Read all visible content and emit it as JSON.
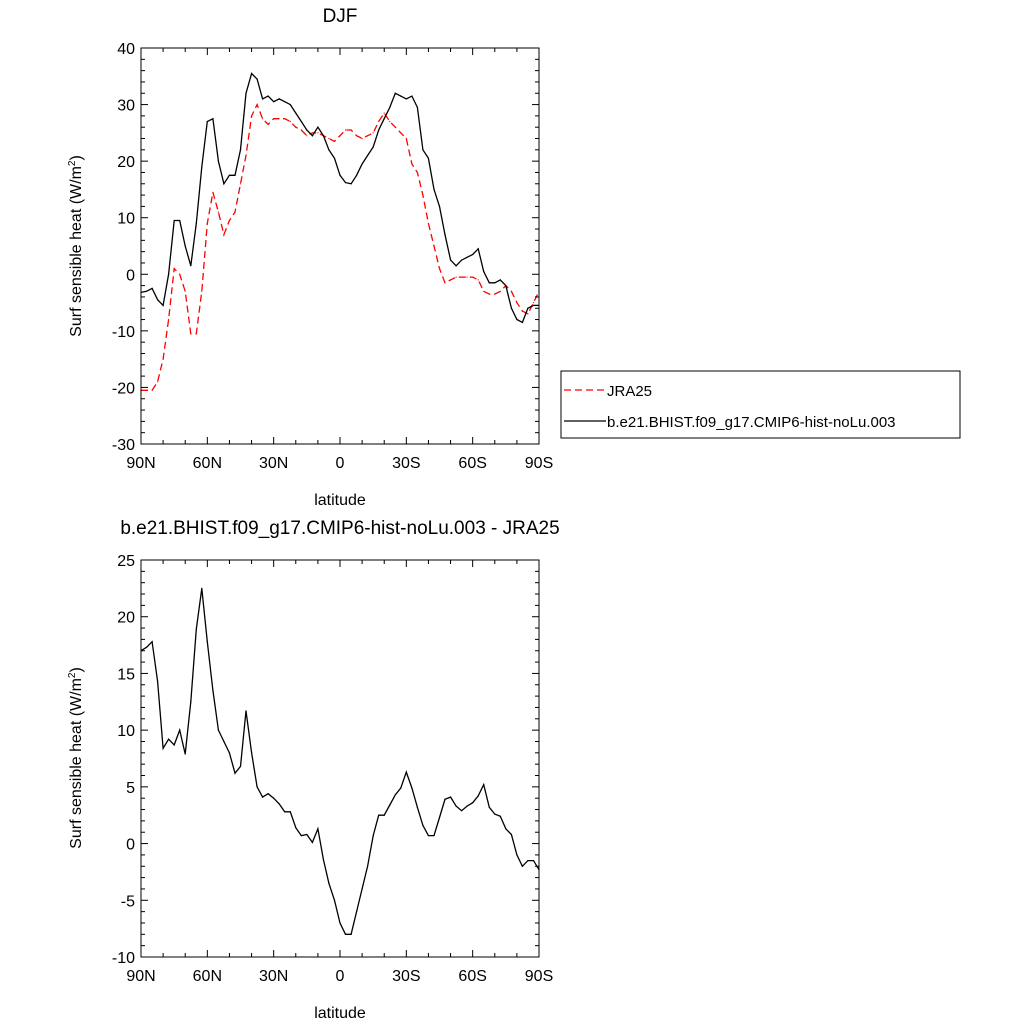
{
  "chart_data": [
    {
      "type": "line",
      "title": "DJF",
      "xlabel": "latitude",
      "ylabel": "Surf sensible heat (W/m",
      "ylabel_sup": "2",
      "ylabel_close": ")",
      "x_ticks": [
        "90N",
        "60N",
        "30N",
        "0",
        "30S",
        "60S",
        "90S"
      ],
      "y_ticks": [
        "40",
        "30",
        "20",
        "10",
        "0",
        "-10",
        "-20",
        "-30"
      ],
      "xlim": [
        90,
        -90
      ],
      "ylim": [
        -30,
        40
      ],
      "legend_placement": "right",
      "series": [
        {
          "name": "JRA25",
          "color": "#ff0000",
          "dash": "dashed",
          "x": [
            90,
            87.5,
            85,
            82.5,
            80,
            77.5,
            75,
            72.5,
            70,
            67.5,
            65,
            62.5,
            60,
            57.5,
            55,
            52.5,
            50,
            47.5,
            45,
            42.5,
            40,
            37.5,
            35,
            32.5,
            30,
            27.5,
            25,
            22.5,
            20,
            17.5,
            15,
            12.5,
            10,
            7.5,
            5,
            2.5,
            0,
            -2.5,
            -5,
            -7.5,
            -10,
            -12.5,
            -15,
            -17.5,
            -20,
            -22.5,
            -25,
            -27.5,
            -30,
            -32.5,
            -35,
            -37.5,
            -40,
            -42.5,
            -45,
            -47.5,
            -50,
            -52.5,
            -55,
            -57.5,
            -60,
            -62.5,
            -65,
            -67.5,
            -70,
            -72.5,
            -75,
            -77.5,
            -80,
            -82.5,
            -85,
            -87.5,
            -90
          ],
          "values": [
            -20.5,
            -20.5,
            -20.5,
            -19,
            -15,
            -8,
            1,
            0,
            -3,
            -10.5,
            -10.5,
            -3,
            9,
            14.5,
            11,
            7,
            9.5,
            11,
            16,
            21,
            28,
            30,
            27.5,
            26.5,
            27.5,
            27.5,
            27.5,
            27,
            26,
            25.5,
            24.5,
            25,
            25,
            24.5,
            24,
            23.5,
            24.5,
            25.5,
            25.5,
            24.5,
            24,
            24.5,
            25,
            27,
            28.5,
            27,
            26,
            25,
            24,
            19.5,
            18,
            14,
            9,
            5,
            1,
            -1.5,
            -1,
            -0.5,
            -0.5,
            -0.5,
            -0.5,
            -1,
            -3,
            -3.5,
            -3.5,
            -3,
            -2,
            -3,
            -5,
            -6.5,
            -7,
            -5,
            -3
          ]
        },
        {
          "name": "b.e21.BHIST.f09_g17.CMIP6-hist-noLu.003",
          "color": "#000000",
          "dash": "solid",
          "x": [
            90,
            87.5,
            85,
            82.5,
            80,
            77.5,
            75,
            72.5,
            70,
            67.5,
            65,
            62.5,
            60,
            57.5,
            55,
            52.5,
            50,
            47.5,
            45,
            42.5,
            40,
            37.5,
            35,
            32.5,
            30,
            27.5,
            25,
            22.5,
            20,
            17.5,
            15,
            12.5,
            10,
            7.5,
            5,
            2.5,
            0,
            -2.5,
            -5,
            -7.5,
            -10,
            -12.5,
            -15,
            -17.5,
            -20,
            -22.5,
            -25,
            -27.5,
            -30,
            -32.5,
            -35,
            -37.5,
            -40,
            -42.5,
            -45,
            -47.5,
            -50,
            -52.5,
            -55,
            -57.5,
            -60,
            -62.5,
            -65,
            -67.5,
            -70,
            -72.5,
            -75,
            -77.5,
            -80,
            -82.5,
            -85,
            -87.5,
            -90
          ],
          "values": [
            -3.2,
            -3,
            -2.5,
            -4.5,
            -5.5,
            0,
            9.5,
            9.5,
            5,
            1.5,
            9,
            19,
            27,
            27.5,
            20,
            16,
            17.5,
            17.5,
            22,
            32,
            35.5,
            34.5,
            31,
            31.5,
            30.5,
            31,
            30.5,
            30,
            28.5,
            27,
            25.5,
            24.5,
            26,
            24.5,
            22,
            20.5,
            17.5,
            16.2,
            16,
            17.5,
            19.5,
            21,
            22.5,
            25.5,
            27.5,
            29.5,
            32,
            31.5,
            31,
            31.5,
            29.5,
            22,
            20.5,
            15,
            12,
            7,
            2.5,
            1.5,
            2.5,
            3,
            3.5,
            4.5,
            0.5,
            -1.5,
            -1.5,
            -1,
            -2,
            -6,
            -8,
            -8.5,
            -6,
            -5.5,
            -5.5
          ]
        }
      ]
    },
    {
      "type": "line",
      "title": "b.e21.BHIST.f09_g17.CMIP6-hist-noLu.003 - JRA25",
      "xlabel": "latitude",
      "ylabel": "Surf sensible heat (W/m",
      "ylabel_sup": "2",
      "ylabel_close": ")",
      "x_ticks": [
        "90N",
        "60N",
        "30N",
        "0",
        "30S",
        "60S",
        "90S"
      ],
      "y_ticks": [
        "25",
        "20",
        "15",
        "10",
        "5",
        "0",
        "-5",
        "-10"
      ],
      "xlim": [
        90,
        -90
      ],
      "ylim": [
        -10,
        25
      ],
      "series": [
        {
          "color": "#000000",
          "dash": "solid",
          "x": [
            90,
            87.5,
            85,
            82.5,
            80,
            77.5,
            75,
            72.5,
            70,
            67.5,
            65,
            62.5,
            60,
            57.5,
            55,
            52.5,
            50,
            47.5,
            45,
            42.5,
            40,
            37.5,
            35,
            32.5,
            30,
            27.5,
            25,
            22.5,
            20,
            17.5,
            15,
            12.5,
            10,
            7.5,
            5,
            2.5,
            0,
            -2.5,
            -5,
            -7.5,
            -10,
            -12.5,
            -15,
            -17.5,
            -20,
            -22.5,
            -25,
            -27.5,
            -30,
            -32.5,
            -35,
            -37.5,
            -40,
            -42.5,
            -45,
            -47.5,
            -50,
            -52.5,
            -55,
            -57.5,
            -60,
            -62.5,
            -65,
            -67.5,
            -70,
            -72.5,
            -75,
            -77.5,
            -80,
            -82.5,
            -85,
            -87.5,
            -90
          ],
          "values": [
            17,
            17.3,
            17.8,
            14.3,
            8.4,
            9.2,
            8.7,
            10,
            7.9,
            12.5,
            18.9,
            22.5,
            17.8,
            13.5,
            10,
            9,
            8,
            6.2,
            6.8,
            11.7,
            8,
            5,
            4.1,
            4.4,
            4,
            3.5,
            2.8,
            2.8,
            1.4,
            0.7,
            0.8,
            0.1,
            1.3,
            -1.4,
            -3.5,
            -5,
            -7,
            -8,
            -8,
            -6,
            -4,
            -2,
            0.7,
            2.5,
            2.5,
            3.4,
            4.3,
            4.9,
            6.3,
            4.9,
            3.2,
            1.6,
            0.7,
            0.7,
            2.3,
            3.9,
            4.1,
            3.3,
            2.9,
            3.3,
            3.6,
            4.2,
            5.2,
            3.2,
            2.6,
            2.4,
            1.3,
            0.8,
            -1,
            -2,
            -1.5,
            -1.5,
            -2.3
          ]
        }
      ]
    }
  ]
}
